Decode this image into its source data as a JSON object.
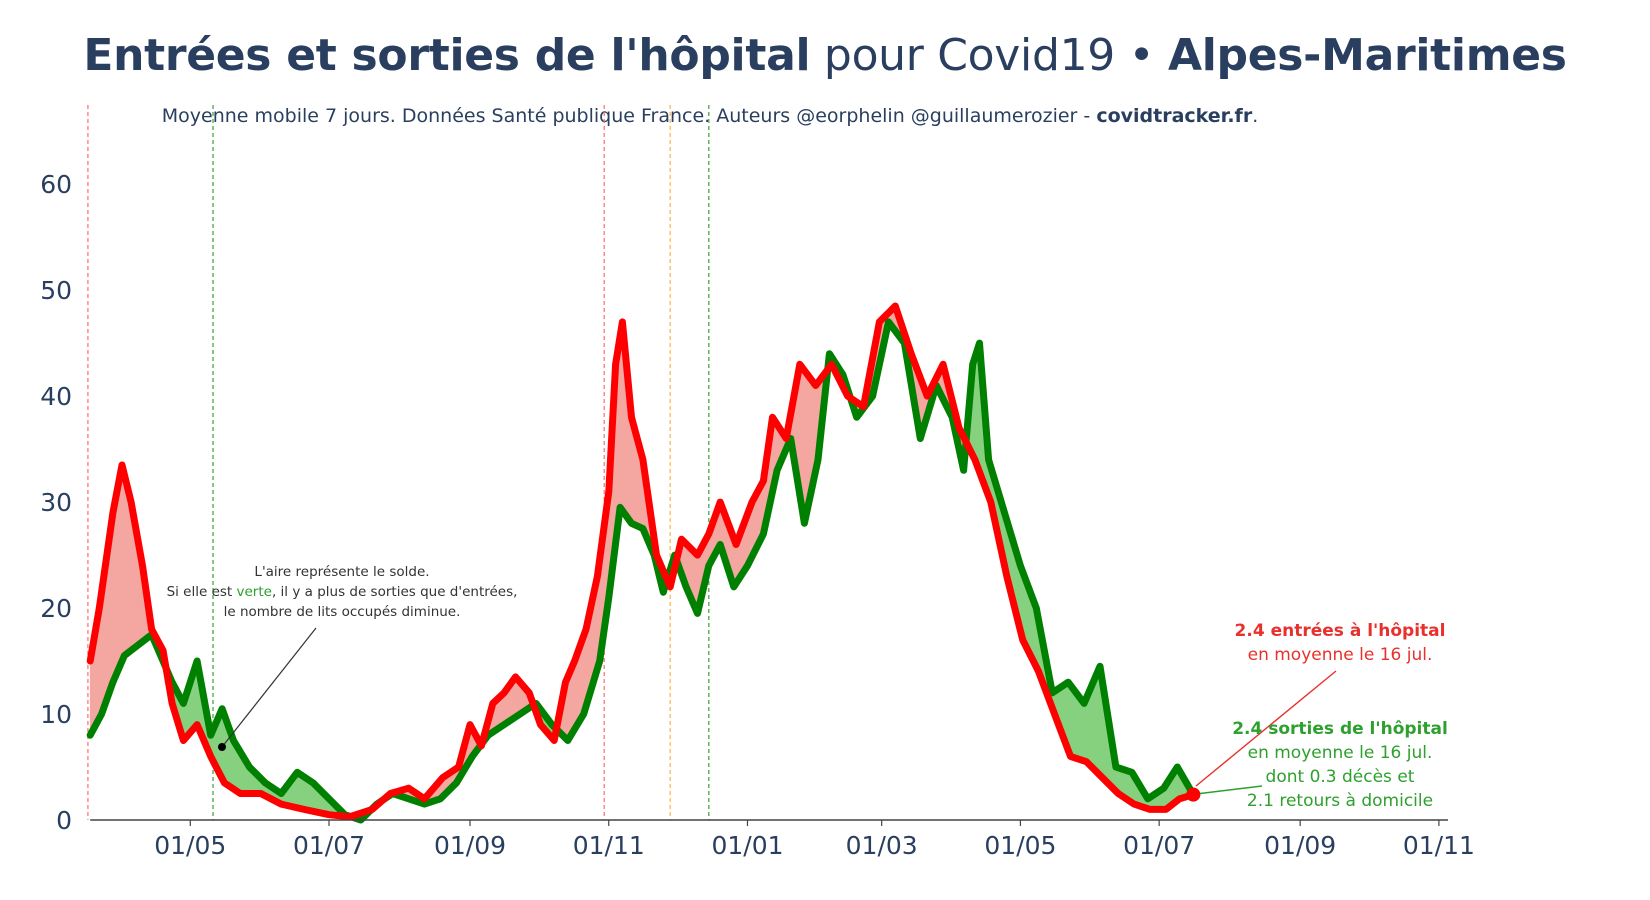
{
  "title": {
    "bold_part": "Entrées et sorties de l'hôpital",
    "regular_part": " pour Covid19 • ",
    "region": "Alpes-Maritimes"
  },
  "subtitle": {
    "text": "Moyenne mobile 7 jours. Données Santé publique France. Auteurs @eorphelin @guillaumerozier - ",
    "link": "covidtracker.fr",
    "end": "."
  },
  "colors": {
    "entries": "#ff0000",
    "exits": "#008000",
    "fill_entries": "#f4a6a0",
    "fill_exits": "#86d17f",
    "axis_text": "#2a3f5f",
    "vline_red": "#ff6b6b",
    "vline_green": "#3aa03a",
    "vline_orange": "#ffb347"
  },
  "note": {
    "line1": "L'aire représente le solde.",
    "line2_pre": "Si elle est ",
    "line2_green": "verte",
    "line2_post": ", il y a plus de sorties que d'entrées,",
    "line3": "le nombre de lits occupés diminue."
  },
  "annotation_entries": {
    "bold": "2.4 entrées à l'hôpital",
    "line2": "en moyenne le 16 jul."
  },
  "annotation_exits": {
    "bold": "2.4 sorties de l'hôpital",
    "line2": "en moyenne le 16 jul.",
    "line3": "dont 0.3 décès et",
    "line4": "2.1 retours à domicile"
  },
  "chart_data": {
    "type": "line",
    "title": "Entrées et sorties de l'hôpital pour Covid19 • Alpes-Maritimes",
    "subtitle": "Moyenne mobile 7 jours. Données Santé publique France. Auteurs @eorphelin @guillaumerozier - covidtracker.fr.",
    "x_ticks": [
      "01/05",
      "01/07",
      "01/09",
      "01/11",
      "01/01",
      "01/03",
      "01/05",
      "01/07",
      "01/09",
      "01/11"
    ],
    "y_ticks": [
      0,
      10,
      20,
      30,
      40,
      50,
      60
    ],
    "ylim": [
      0,
      67
    ],
    "x_range": [
      "2020-03-10",
      "2021-11-05"
    ],
    "grid": false,
    "vertical_markers": [
      {
        "date": "2020-03-17",
        "color": "red"
      },
      {
        "date": "2020-05-11",
        "color": "green"
      },
      {
        "date": "2020-10-30",
        "color": "red"
      },
      {
        "date": "2020-11-28",
        "color": "orange"
      },
      {
        "date": "2020-12-15",
        "color": "green"
      }
    ],
    "series": [
      {
        "name": "Entrées",
        "color": "#ff0000",
        "points": [
          [
            "2020-03-18",
            15
          ],
          [
            "2020-03-22",
            20
          ],
          [
            "2020-03-28",
            29
          ],
          [
            "2020-04-01",
            33.5
          ],
          [
            "2020-04-05",
            30
          ],
          [
            "2020-04-10",
            24
          ],
          [
            "2020-04-14",
            18
          ],
          [
            "2020-04-19",
            16
          ],
          [
            "2020-04-23",
            11
          ],
          [
            "2020-04-28",
            7.5
          ],
          [
            "2020-05-04",
            9
          ],
          [
            "2020-05-10",
            6
          ],
          [
            "2020-05-16",
            3.5
          ],
          [
            "2020-05-23",
            2.5
          ],
          [
            "2020-06-01",
            2.5
          ],
          [
            "2020-06-10",
            1.5
          ],
          [
            "2020-06-20",
            1
          ],
          [
            "2020-07-01",
            0.5
          ],
          [
            "2020-07-10",
            0.3
          ],
          [
            "2020-07-20",
            1
          ],
          [
            "2020-07-28",
            2.5
          ],
          [
            "2020-08-05",
            3
          ],
          [
            "2020-08-12",
            2
          ],
          [
            "2020-08-20",
            4
          ],
          [
            "2020-08-27",
            5
          ],
          [
            "2020-09-01",
            9
          ],
          [
            "2020-09-06",
            7
          ],
          [
            "2020-09-11",
            11
          ],
          [
            "2020-09-16",
            12
          ],
          [
            "2020-09-21",
            13.5
          ],
          [
            "2020-09-27",
            12
          ],
          [
            "2020-10-02",
            9
          ],
          [
            "2020-10-08",
            7.5
          ],
          [
            "2020-10-13",
            13
          ],
          [
            "2020-10-17",
            15
          ],
          [
            "2020-10-22",
            18
          ],
          [
            "2020-10-27",
            23
          ],
          [
            "2020-11-01",
            31
          ],
          [
            "2020-11-04",
            43
          ],
          [
            "2020-11-07",
            47
          ],
          [
            "2020-11-11",
            38
          ],
          [
            "2020-11-16",
            34
          ],
          [
            "2020-11-22",
            25
          ],
          [
            "2020-11-28",
            22
          ],
          [
            "2020-12-03",
            26.5
          ],
          [
            "2020-12-10",
            25
          ],
          [
            "2020-12-15",
            27
          ],
          [
            "2020-12-20",
            30
          ],
          [
            "2020-12-27",
            26
          ],
          [
            "2021-01-03",
            30
          ],
          [
            "2021-01-08",
            32
          ],
          [
            "2021-01-12",
            38
          ],
          [
            "2021-01-18",
            36
          ],
          [
            "2021-01-24",
            43
          ],
          [
            "2021-01-31",
            41
          ],
          [
            "2021-02-07",
            43
          ],
          [
            "2021-02-14",
            40
          ],
          [
            "2021-02-21",
            39
          ],
          [
            "2021-02-28",
            47
          ],
          [
            "2021-03-07",
            48.5
          ],
          [
            "2021-03-14",
            44
          ],
          [
            "2021-03-21",
            40
          ],
          [
            "2021-03-28",
            43
          ],
          [
            "2021-04-04",
            37
          ],
          [
            "2021-04-11",
            34
          ],
          [
            "2021-04-18",
            30
          ],
          [
            "2021-04-25",
            23
          ],
          [
            "2021-05-02",
            17
          ],
          [
            "2021-05-09",
            14
          ],
          [
            "2021-05-16",
            10
          ],
          [
            "2021-05-23",
            6
          ],
          [
            "2021-05-30",
            5.5
          ],
          [
            "2021-06-06",
            4
          ],
          [
            "2021-06-13",
            2.5
          ],
          [
            "2021-06-20",
            1.5
          ],
          [
            "2021-06-27",
            1
          ],
          [
            "2021-07-04",
            1
          ],
          [
            "2021-07-10",
            2
          ],
          [
            "2021-07-16",
            2.4
          ]
        ]
      },
      {
        "name": "Sorties",
        "color": "#008000",
        "points": [
          [
            "2020-03-18",
            8
          ],
          [
            "2020-03-23",
            10
          ],
          [
            "2020-03-28",
            13
          ],
          [
            "2020-04-02",
            15.5
          ],
          [
            "2020-04-08",
            16.5
          ],
          [
            "2020-04-14",
            17.5
          ],
          [
            "2020-04-19",
            15
          ],
          [
            "2020-04-23",
            13
          ],
          [
            "2020-04-28",
            11
          ],
          [
            "2020-05-04",
            15
          ],
          [
            "2020-05-10",
            8
          ],
          [
            "2020-05-15",
            10.5
          ],
          [
            "2020-05-20",
            7.5
          ],
          [
            "2020-05-27",
            5
          ],
          [
            "2020-06-03",
            3.5
          ],
          [
            "2020-06-10",
            2.5
          ],
          [
            "2020-06-17",
            4.5
          ],
          [
            "2020-06-24",
            3.5
          ],
          [
            "2020-07-01",
            2
          ],
          [
            "2020-07-08",
            0.5
          ],
          [
            "2020-07-15",
            0
          ],
          [
            "2020-07-22",
            1.5
          ],
          [
            "2020-07-29",
            2.5
          ],
          [
            "2020-08-05",
            2
          ],
          [
            "2020-08-12",
            1.5
          ],
          [
            "2020-08-19",
            2
          ],
          [
            "2020-08-26",
            3.5
          ],
          [
            "2020-09-02",
            6
          ],
          [
            "2020-09-09",
            8
          ],
          [
            "2020-09-16",
            9
          ],
          [
            "2020-09-23",
            10
          ],
          [
            "2020-09-30",
            11
          ],
          [
            "2020-10-07",
            9
          ],
          [
            "2020-10-14",
            7.5
          ],
          [
            "2020-10-21",
            10
          ],
          [
            "2020-10-28",
            15
          ],
          [
            "2020-11-01",
            21
          ],
          [
            "2020-11-06",
            29.5
          ],
          [
            "2020-11-11",
            28
          ],
          [
            "2020-11-16",
            27.5
          ],
          [
            "2020-11-21",
            25
          ],
          [
            "2020-11-25",
            21.5
          ],
          [
            "2020-11-30",
            25
          ],
          [
            "2020-12-05",
            22
          ],
          [
            "2020-12-10",
            19.5
          ],
          [
            "2020-12-15",
            24
          ],
          [
            "2020-12-20",
            26
          ],
          [
            "2020-12-26",
            22
          ],
          [
            "2021-01-01",
            24
          ],
          [
            "2021-01-08",
            27
          ],
          [
            "2021-01-14",
            33
          ],
          [
            "2021-01-20",
            36
          ],
          [
            "2021-01-26",
            28
          ],
          [
            "2021-02-01",
            34
          ],
          [
            "2021-02-06",
            44
          ],
          [
            "2021-02-12",
            42
          ],
          [
            "2021-02-18",
            38
          ],
          [
            "2021-02-25",
            40
          ],
          [
            "2021-03-04",
            47
          ],
          [
            "2021-03-11",
            45
          ],
          [
            "2021-03-18",
            36
          ],
          [
            "2021-03-25",
            41
          ],
          [
            "2021-04-01",
            38
          ],
          [
            "2021-04-06",
            33
          ],
          [
            "2021-04-10",
            43
          ],
          [
            "2021-04-13",
            45
          ],
          [
            "2021-04-17",
            34
          ],
          [
            "2021-04-24",
            29
          ],
          [
            "2021-05-01",
            24
          ],
          [
            "2021-05-08",
            20
          ],
          [
            "2021-05-15",
            12
          ],
          [
            "2021-05-22",
            13
          ],
          [
            "2021-05-29",
            11
          ],
          [
            "2021-06-05",
            14.5
          ],
          [
            "2021-06-12",
            5
          ],
          [
            "2021-06-19",
            4.5
          ],
          [
            "2021-06-26",
            2
          ],
          [
            "2021-07-03",
            3
          ],
          [
            "2021-07-09",
            5
          ],
          [
            "2021-07-16",
            2.4
          ]
        ]
      }
    ]
  }
}
